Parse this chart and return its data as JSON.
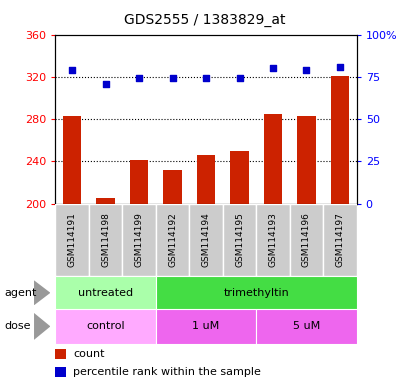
{
  "title": "GDS2555 / 1383829_at",
  "samples": [
    "GSM114191",
    "GSM114198",
    "GSM114199",
    "GSM114192",
    "GSM114194",
    "GSM114195",
    "GSM114193",
    "GSM114196",
    "GSM114197"
  ],
  "bar_values": [
    283,
    205,
    241,
    232,
    246,
    250,
    285,
    283,
    321
  ],
  "dot_values_pct": [
    79,
    71,
    74,
    74,
    74,
    74,
    80,
    79,
    81
  ],
  "ylim_left": [
    200,
    360
  ],
  "ylim_right": [
    0,
    100
  ],
  "yticks_left": [
    200,
    240,
    280,
    320,
    360
  ],
  "yticks_right": [
    0,
    25,
    50,
    75,
    100
  ],
  "ytick_labels_right": [
    "0",
    "25",
    "50",
    "75",
    "100%"
  ],
  "bar_color": "#CC2200",
  "dot_color": "#0000CC",
  "agent_groups": [
    {
      "label": "untreated",
      "start": 0,
      "end": 3,
      "color": "#AAFFAA"
    },
    {
      "label": "trimethyltin",
      "start": 3,
      "end": 9,
      "color": "#44DD44"
    }
  ],
  "dose_groups": [
    {
      "label": "control",
      "start": 0,
      "end": 3,
      "color": "#FFAAFF"
    },
    {
      "label": "1 uM",
      "start": 3,
      "end": 6,
      "color": "#EE66EE"
    },
    {
      "label": "5 uM",
      "start": 6,
      "end": 9,
      "color": "#EE66EE"
    }
  ],
  "legend_count_color": "#CC2200",
  "legend_dot_color": "#0000CC",
  "background_color": "#ffffff",
  "plot_bg_color": "#ffffff",
  "label_agent": "agent",
  "label_dose": "dose",
  "dotted_line_values": [
    240,
    280,
    320
  ],
  "sample_bg_color": "#CCCCCC",
  "sample_border_color": "#999999"
}
